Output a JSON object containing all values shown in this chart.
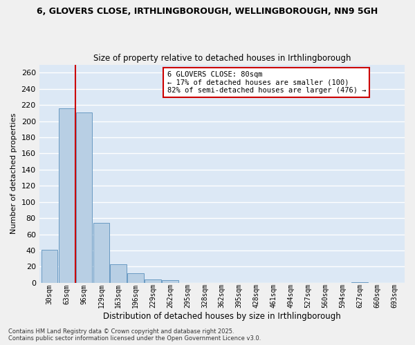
{
  "title_line1": "6, GLOVERS CLOSE, IRTHLINGBOROUGH, WELLINGBOROUGH, NN9 5GH",
  "title_line2": "Size of property relative to detached houses in Irthlingborough",
  "xlabel": "Distribution of detached houses by size in Irthlingborough",
  "ylabel": "Number of detached properties",
  "categories": [
    "30sqm",
    "63sqm",
    "96sqm",
    "129sqm",
    "163sqm",
    "196sqm",
    "229sqm",
    "262sqm",
    "295sqm",
    "328sqm",
    "362sqm",
    "395sqm",
    "428sqm",
    "461sqm",
    "494sqm",
    "527sqm",
    "560sqm",
    "594sqm",
    "627sqm",
    "660sqm",
    "693sqm"
  ],
  "values": [
    41,
    216,
    211,
    74,
    23,
    12,
    4,
    3,
    0,
    0,
    0,
    0,
    0,
    0,
    0,
    0,
    0,
    0,
    1,
    0,
    0
  ],
  "bar_color": "#b8cfe4",
  "bar_edge_color": "#6899c2",
  "annotation_text": "6 GLOVERS CLOSE: 80sqm\n← 17% of detached houses are smaller (100)\n82% of semi-detached houses are larger (476) →",
  "annotation_box_color": "#ffffff",
  "annotation_box_edge_color": "#cc0000",
  "annotation_text_color": "#000000",
  "red_line_color": "#cc0000",
  "ylim": [
    0,
    270
  ],
  "yticks": [
    0,
    20,
    40,
    60,
    80,
    100,
    120,
    140,
    160,
    180,
    200,
    220,
    240,
    260
  ],
  "background_color": "#dce8f5",
  "grid_color": "#ffffff",
  "fig_background": "#f0f0f0",
  "footer_line1": "Contains HM Land Registry data © Crown copyright and database right 2025.",
  "footer_line2": "Contains public sector information licensed under the Open Government Licence v3.0."
}
